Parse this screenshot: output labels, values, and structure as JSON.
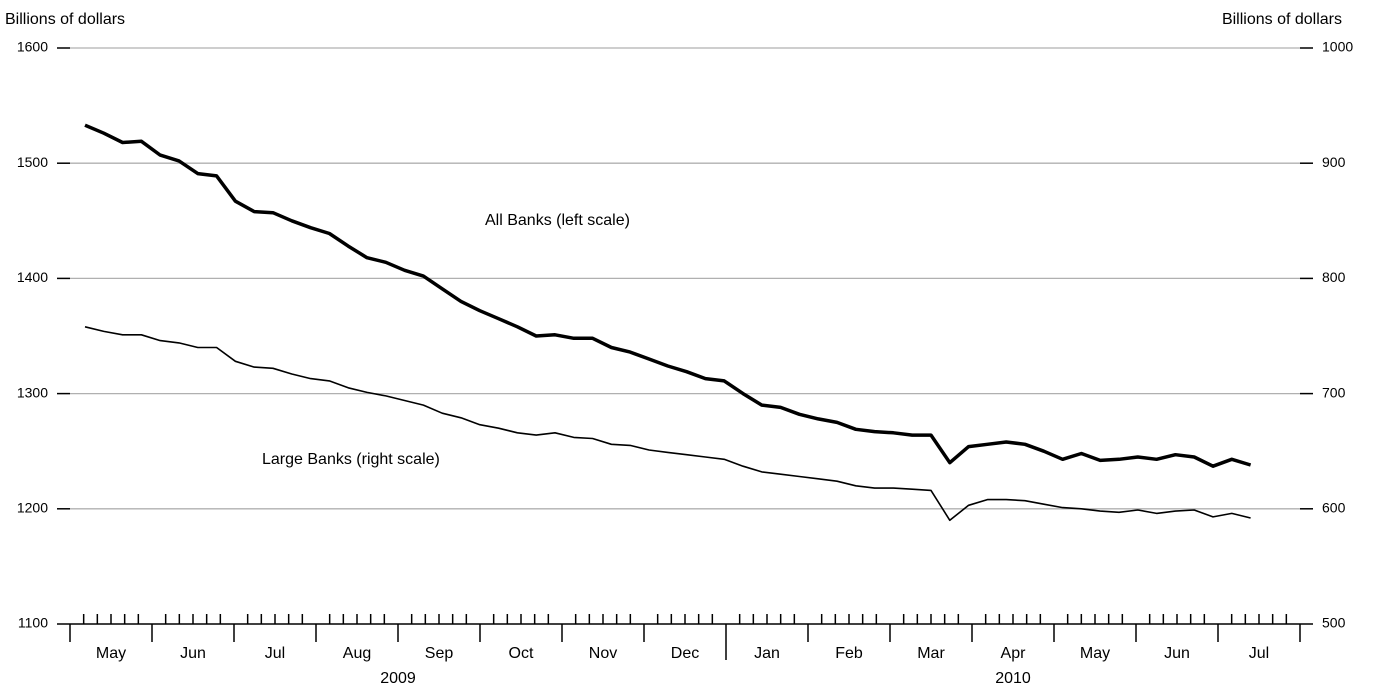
{
  "chart_data": {
    "type": "line",
    "y_label": "Billions of dollars",
    "y2_label": "Billions of dollars",
    "months": [
      "May",
      "Jun",
      "Jul",
      "Aug",
      "Sep",
      "Oct",
      "Nov",
      "Dec",
      "Jan",
      "Feb",
      "Mar",
      "Apr",
      "May",
      "Jun",
      "Jul"
    ],
    "years": [
      "2009",
      "2010"
    ],
    "ylim": [
      1100,
      1600
    ],
    "yticks": [
      1100,
      1200,
      1300,
      1400,
      1500,
      1600
    ],
    "y2lim": [
      500,
      1000
    ],
    "y2ticks": [
      500,
      600,
      700,
      800,
      900,
      1000
    ],
    "grid": true,
    "series": [
      {
        "name": "All Banks (left scale)",
        "color": "#000000",
        "values": [
          1533,
          1526,
          1518,
          1519,
          1507,
          1502,
          1491,
          1489,
          1467,
          1458,
          1457,
          1450,
          1444,
          1439,
          1428,
          1418,
          1414,
          1407,
          1402,
          1391,
          1380,
          1372,
          1365,
          1358,
          1350,
          1351,
          1348,
          1348,
          1340,
          1336,
          1330,
          1324,
          1319,
          1313,
          1311,
          1300,
          1290,
          1288,
          1282,
          1278,
          1275,
          1269,
          1267,
          1266,
          1264,
          1264,
          1240,
          1254,
          1256,
          1258,
          1256,
          1250,
          1243,
          1248,
          1242,
          1243,
          1245,
          1243,
          1247,
          1245,
          1237,
          1243,
          1238
        ]
      },
      {
        "name": "Large Banks (right scale)",
        "color": "#000000",
        "axis": "y2",
        "values": [
          758,
          754,
          751,
          751,
          746,
          744,
          740,
          740,
          728,
          723,
          722,
          717,
          713,
          711,
          705,
          701,
          698,
          694,
          690,
          683,
          679,
          673,
          670,
          666,
          664,
          666,
          662,
          661,
          656,
          655,
          651,
          649,
          647,
          645,
          643,
          637,
          632,
          630,
          628,
          626,
          624,
          620,
          618,
          618,
          617,
          616,
          590,
          603,
          608,
          608,
          607,
          604,
          601,
          600,
          598,
          597,
          599,
          596,
          598,
          599,
          593,
          596,
          592
        ]
      }
    ]
  }
}
